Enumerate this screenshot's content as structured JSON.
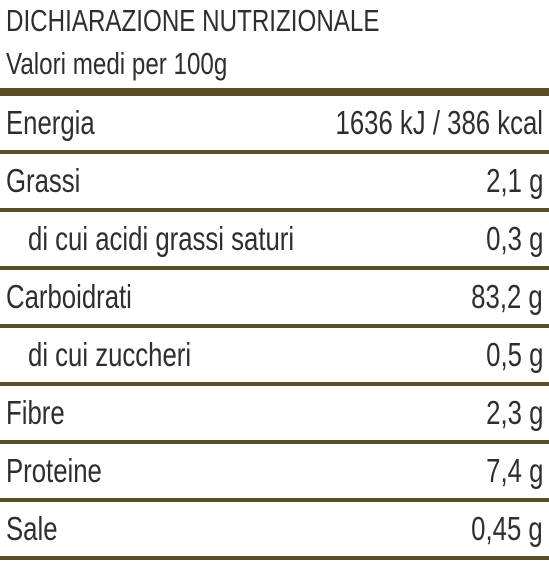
{
  "header": {
    "title": "DICHIARAZIONE NUTRIZIONALE",
    "subtitle": "Valori medi per 100g"
  },
  "table": {
    "rows": [
      [
        "Energia",
        "1636 kJ / 386 kcal"
      ],
      [
        "Grassi",
        "2,1 g"
      ],
      [
        "di cui acidi grassi saturi",
        "0,3 g"
      ],
      [
        "Carboidrati",
        "83,2 g"
      ],
      [
        "di cui zuccheri",
        "0,5 g"
      ],
      [
        "Fibre",
        "2,3 g"
      ],
      [
        "Proteine",
        "7,4 g"
      ],
      [
        "Sale",
        "0,45 g"
      ]
    ]
  }
}
